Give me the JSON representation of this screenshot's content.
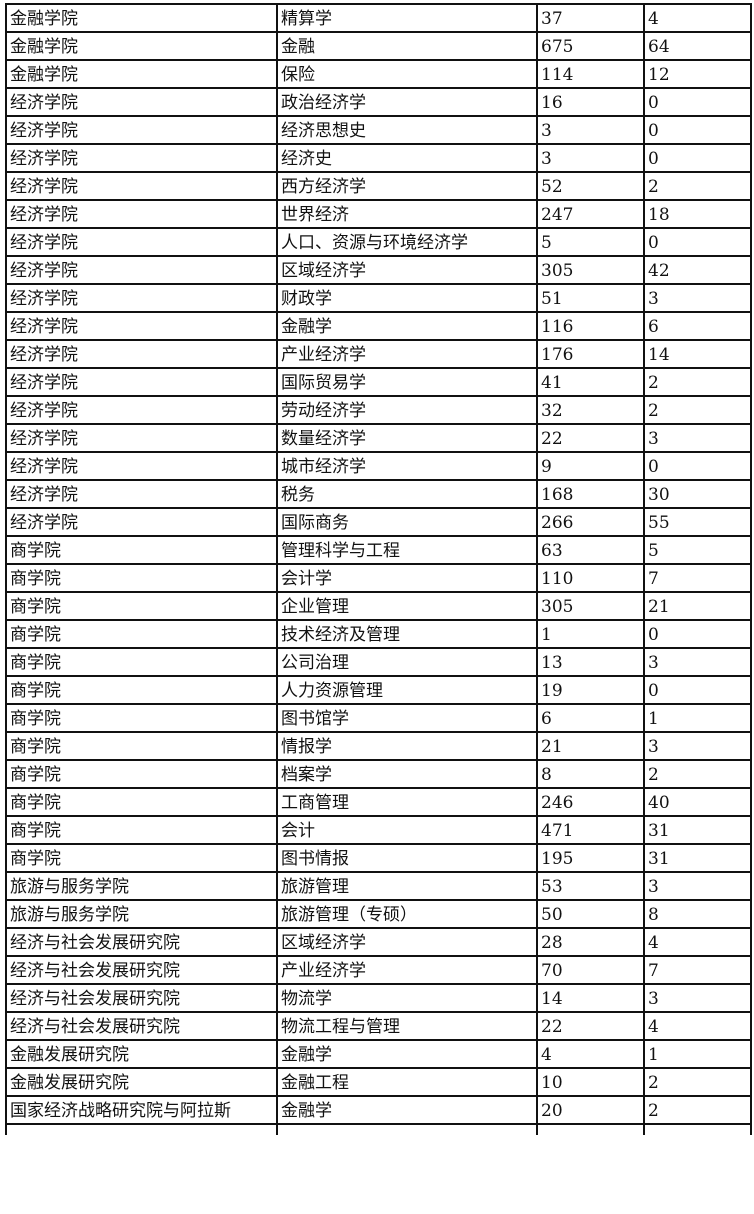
{
  "rows": [
    [
      "金融学院",
      "精算学",
      "37",
      "4"
    ],
    [
      "金融学院",
      "金融",
      "675",
      "64"
    ],
    [
      "金融学院",
      "保险",
      "114",
      "12"
    ],
    [
      "经济学院",
      "政治经济学",
      "16",
      "0"
    ],
    [
      "经济学院",
      "经济思想史",
      "3",
      "0"
    ],
    [
      "经济学院",
      "经济史",
      "3",
      "0"
    ],
    [
      "经济学院",
      "西方经济学",
      "52",
      "2"
    ],
    [
      "经济学院",
      "世界经济",
      "247",
      "18"
    ],
    [
      "经济学院",
      "人口、资源与环境经济学",
      "5",
      "0"
    ],
    [
      "经济学院",
      "区域经济学",
      "305",
      "42"
    ],
    [
      "经济学院",
      "财政学",
      "51",
      "3"
    ],
    [
      "经济学院",
      "金融学",
      "116",
      "6"
    ],
    [
      "经济学院",
      "产业经济学",
      "176",
      "14"
    ],
    [
      "经济学院",
      "国际贸易学",
      "41",
      "2"
    ],
    [
      "经济学院",
      "劳动经济学",
      "32",
      "2"
    ],
    [
      "经济学院",
      "数量经济学",
      "22",
      "3"
    ],
    [
      "经济学院",
      "城市经济学",
      "9",
      "0"
    ],
    [
      "经济学院",
      "税务",
      "168",
      "30"
    ],
    [
      "经济学院",
      "国际商务",
      "266",
      "55"
    ],
    [
      "商学院",
      "管理科学与工程",
      "63",
      "5"
    ],
    [
      "商学院",
      "会计学",
      "110",
      "7"
    ],
    [
      "商学院",
      "企业管理",
      "305",
      "21"
    ],
    [
      "商学院",
      "技术经济及管理",
      "1",
      "0"
    ],
    [
      "商学院",
      "公司治理",
      "13",
      "3"
    ],
    [
      "商学院",
      "人力资源管理",
      "19",
      "0"
    ],
    [
      "商学院",
      "图书馆学",
      "6",
      "1"
    ],
    [
      "商学院",
      "情报学",
      "21",
      "3"
    ],
    [
      "商学院",
      "档案学",
      "8",
      "2"
    ],
    [
      "商学院",
      "工商管理",
      "246",
      "40"
    ],
    [
      "商学院",
      "会计",
      "471",
      "31"
    ],
    [
      "商学院",
      "图书情报",
      "195",
      "31"
    ],
    [
      "旅游与服务学院",
      "旅游管理",
      "53",
      "3"
    ],
    [
      "旅游与服务学院",
      "旅游管理（专硕）",
      "50",
      "8"
    ],
    [
      "经济与社会发展研究院",
      "区域经济学",
      "28",
      "4"
    ],
    [
      "经济与社会发展研究院",
      "产业经济学",
      "70",
      "7"
    ],
    [
      "经济与社会发展研究院",
      "物流学",
      "14",
      "3"
    ],
    [
      "经济与社会发展研究院",
      "物流工程与管理",
      "22",
      "4"
    ],
    [
      "金融发展研究院",
      "金融学",
      "4",
      "1"
    ],
    [
      "金融发展研究院",
      "金融工程",
      "10",
      "2"
    ],
    [
      "国家经济战略研究院与阿拉斯",
      "金融学",
      "20",
      "2"
    ]
  ]
}
